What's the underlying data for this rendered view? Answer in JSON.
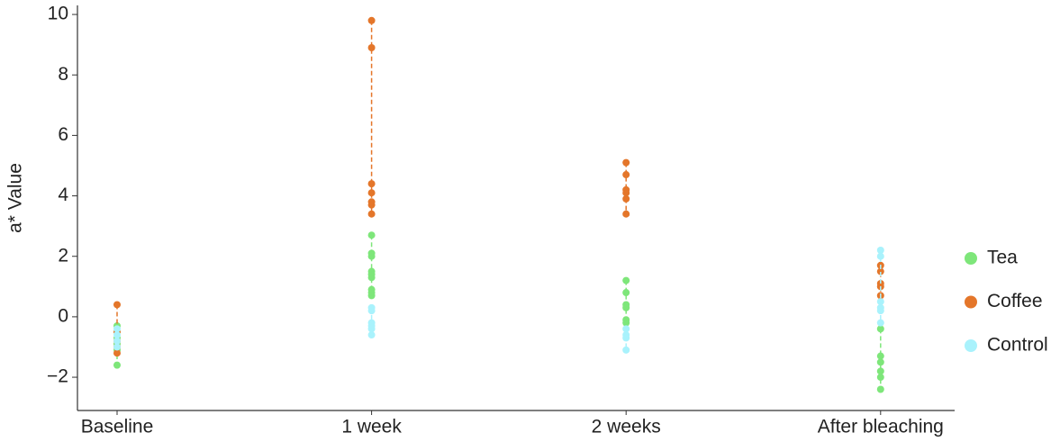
{
  "chart_data": {
    "type": "strip",
    "ylabel": "a* Value",
    "categories": [
      "Baseline",
      "1 week",
      "2 weeks",
      "After bleaching"
    ],
    "ylim": [
      -3.1,
      10.3
    ],
    "yticks": [
      {
        "value": -2,
        "label": "−2"
      },
      0,
      2,
      4,
      6,
      8,
      10
    ],
    "series": [
      {
        "name": "Tea",
        "color": "#7ee67a",
        "values": [
          [
            -0.3,
            -0.5,
            -0.7,
            -0.9,
            -1.1,
            -1.6
          ],
          [
            2.7,
            2.1,
            2.0,
            1.5,
            1.4,
            1.3,
            0.9,
            0.8,
            0.7
          ],
          [
            1.2,
            0.8,
            0.4,
            0.3,
            -0.1,
            -0.2
          ],
          [
            -0.4,
            -1.3,
            -1.5,
            -1.8,
            -2.0,
            -2.4
          ]
        ]
      },
      {
        "name": "Coffee",
        "color": "#e4762a",
        "values": [
          [
            0.4,
            -0.5,
            -0.8,
            -1.0,
            -1.2
          ],
          [
            9.8,
            8.9,
            4.4,
            4.1,
            3.8,
            3.7,
            3.4
          ],
          [
            5.1,
            4.7,
            4.2,
            4.1,
            3.9,
            3.4
          ],
          [
            1.7,
            1.5,
            1.1,
            1.0,
            0.7
          ]
        ]
      },
      {
        "name": "Control",
        "color": "#a9f2fc",
        "values": [
          [
            -0.4,
            -0.6,
            -0.8,
            -1.0
          ],
          [
            0.3,
            0.2,
            -0.2,
            -0.3,
            -0.4,
            -0.6
          ],
          [
            -0.4,
            -0.6,
            -0.7,
            -1.1
          ],
          [
            2.2,
            2.0,
            0.5,
            0.3,
            0.2,
            -0.2
          ]
        ]
      }
    ]
  }
}
